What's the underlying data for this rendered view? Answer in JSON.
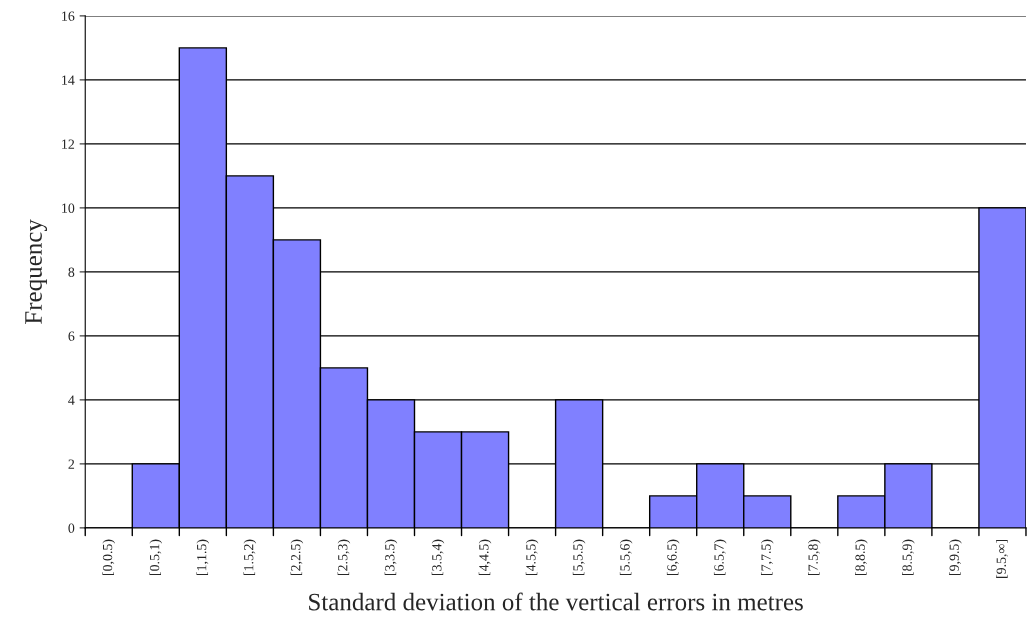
{
  "chart_data": {
    "type": "bar",
    "xlabel": "Standard deviation of the vertical errors in metres",
    "ylabel": "Frequency",
    "categories": [
      "[0,0.5)",
      "[0.5,1)",
      "[1,1.5)",
      "[1.5,2)",
      "[2,2.5)",
      "[2.5,3)",
      "[3,3.5)",
      "[3.5,4)",
      "[4,4.5)",
      "[4.5,5)",
      "[5,5.5)",
      "[5.5,6)",
      "[6,6.5)",
      "[6.5,7)",
      "[7,7.5)",
      "[7.5,8)",
      "[8,8.5)",
      "[8.5,9)",
      "[9,9.5)",
      "[9.5,∞]"
    ],
    "values": [
      0,
      2,
      15,
      11,
      9,
      5,
      4,
      3,
      3,
      0,
      4,
      0,
      1,
      2,
      1,
      0,
      1,
      2,
      0,
      10
    ],
    "color": "#8080ff",
    "ylim": [
      0,
      16
    ],
    "yticks": [
      0,
      2,
      4,
      6,
      8,
      10,
      12,
      14,
      16
    ],
    "grid": "y",
    "legend": false
  }
}
